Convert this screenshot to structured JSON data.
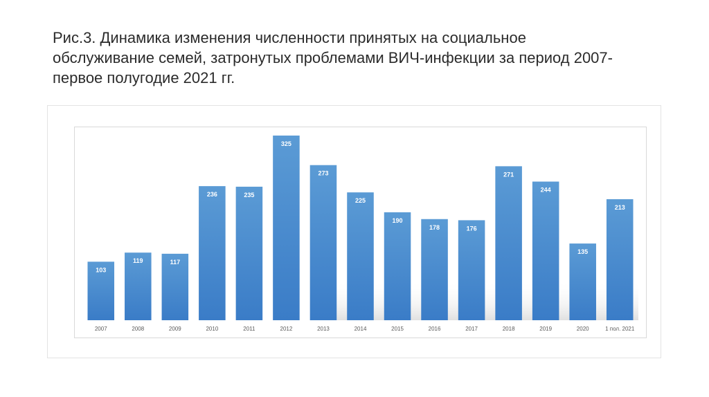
{
  "slide": {
    "title": "Рис.3. Динамика изменения численности принятых на социальное\nобслуживание семей, затронутых проблемами ВИЧ-инфекции за период 2007-\nпервое полугодие 2021 гг."
  },
  "chart_data": {
    "type": "bar",
    "title": "",
    "xlabel": "",
    "ylabel": "",
    "categories": [
      "2007",
      "2008",
      "2009",
      "2010",
      "2011",
      "2012",
      "2013",
      "2014",
      "2015",
      "2016",
      "2017",
      "2018",
      "2019",
      "2020",
      "1 пол. 2021"
    ],
    "values": [
      103,
      119,
      117,
      236,
      235,
      325,
      273,
      225,
      190,
      178,
      176,
      271,
      244,
      135,
      213
    ],
    "ylim": [
      0,
      350
    ],
    "grid": false,
    "legend": "none",
    "data_labels": true,
    "bar_color_top": "#5b9bd5",
    "bar_color_bottom": "#3a7cc7",
    "label_color": "#ffffff"
  }
}
